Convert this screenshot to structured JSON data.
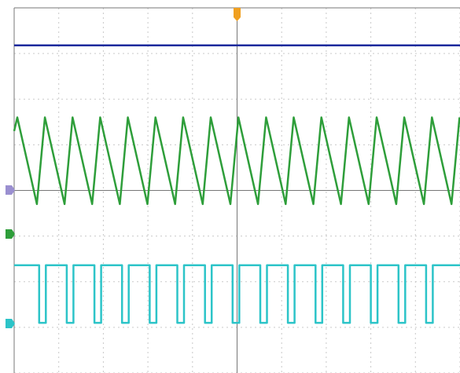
{
  "chart_data": {
    "type": "line",
    "grid": true,
    "xlim": [
      0,
      10
    ],
    "ylim": [
      -4,
      4
    ],
    "xticks": [
      0,
      1,
      2,
      3,
      4,
      5,
      6,
      7,
      8,
      9,
      10
    ],
    "yticks": [
      -4,
      -3,
      -2,
      -1,
      0,
      1,
      2,
      3,
      4
    ],
    "series": [
      {
        "color": "#1a2a9c",
        "x": [
          0,
          10
        ],
        "values": [
          3.18,
          3.18
        ]
      },
      {
        "color": "#2e9e3a",
        "x": [
          0,
          0.07,
          0.51,
          0.69,
          1.13,
          1.31,
          1.75,
          1.93,
          2.37,
          2.55,
          2.99,
          3.17,
          3.61,
          3.79,
          4.23,
          4.41,
          4.85,
          5.03,
          5.47,
          5.65,
          6.09,
          6.27,
          6.71,
          6.89,
          7.33,
          7.51,
          7.95,
          8.13,
          8.57,
          8.75,
          9.19,
          9.37,
          9.81,
          9.99
        ],
        "values": [
          1.3,
          1.6,
          -0.3,
          1.6,
          -0.3,
          1.6,
          -0.3,
          1.6,
          -0.3,
          1.6,
          -0.3,
          1.6,
          -0.3,
          1.6,
          -0.3,
          1.6,
          -0.3,
          1.6,
          -0.3,
          1.6,
          -0.3,
          1.6,
          -0.3,
          1.6,
          -0.3,
          1.6,
          -0.3,
          1.6,
          -0.3,
          1.6,
          -0.3,
          1.6,
          -0.3,
          1.6
        ]
      },
      {
        "color": "#2cc4c8",
        "x": [
          0,
          0.56,
          0.56,
          0.71,
          0.71,
          1.18,
          1.18,
          1.33,
          1.33,
          1.8,
          1.8,
          1.95,
          1.95,
          2.42,
          2.42,
          2.57,
          2.57,
          3.04,
          3.04,
          3.19,
          3.19,
          3.66,
          3.66,
          3.81,
          3.81,
          4.28,
          4.28,
          4.43,
          4.43,
          4.9,
          4.9,
          5.05,
          5.05,
          5.52,
          5.52,
          5.67,
          5.67,
          6.14,
          6.14,
          6.29,
          6.29,
          6.76,
          6.76,
          6.91,
          6.91,
          7.38,
          7.38,
          7.53,
          7.53,
          8.0,
          8.0,
          8.15,
          8.15,
          8.62,
          8.62,
          8.77,
          8.77,
          9.24,
          9.24,
          9.39,
          9.39,
          10
        ],
        "values": [
          -1.64,
          -1.64,
          -2.9,
          -2.9,
          -1.64,
          -1.64,
          -2.9,
          -2.9,
          -1.64,
          -1.64,
          -2.9,
          -2.9,
          -1.64,
          -1.64,
          -2.9,
          -2.9,
          -1.64,
          -1.64,
          -2.9,
          -2.9,
          -1.64,
          -1.64,
          -2.9,
          -2.9,
          -1.64,
          -1.64,
          -2.9,
          -2.9,
          -1.64,
          -1.64,
          -2.9,
          -2.9,
          -1.64,
          -1.64,
          -2.9,
          -2.9,
          -1.64,
          -1.64,
          -2.9,
          -2.9,
          -1.64,
          -1.64,
          -2.9,
          -2.9,
          -1.64,
          -1.64,
          -2.9,
          -2.9,
          -1.64,
          -1.64,
          -2.9,
          -2.9,
          -1.64,
          -1.64,
          -2.9,
          -2.9,
          -1.64,
          -1.64,
          -2.9,
          -2.9,
          -1.64,
          -1.64
        ]
      }
    ]
  }
}
